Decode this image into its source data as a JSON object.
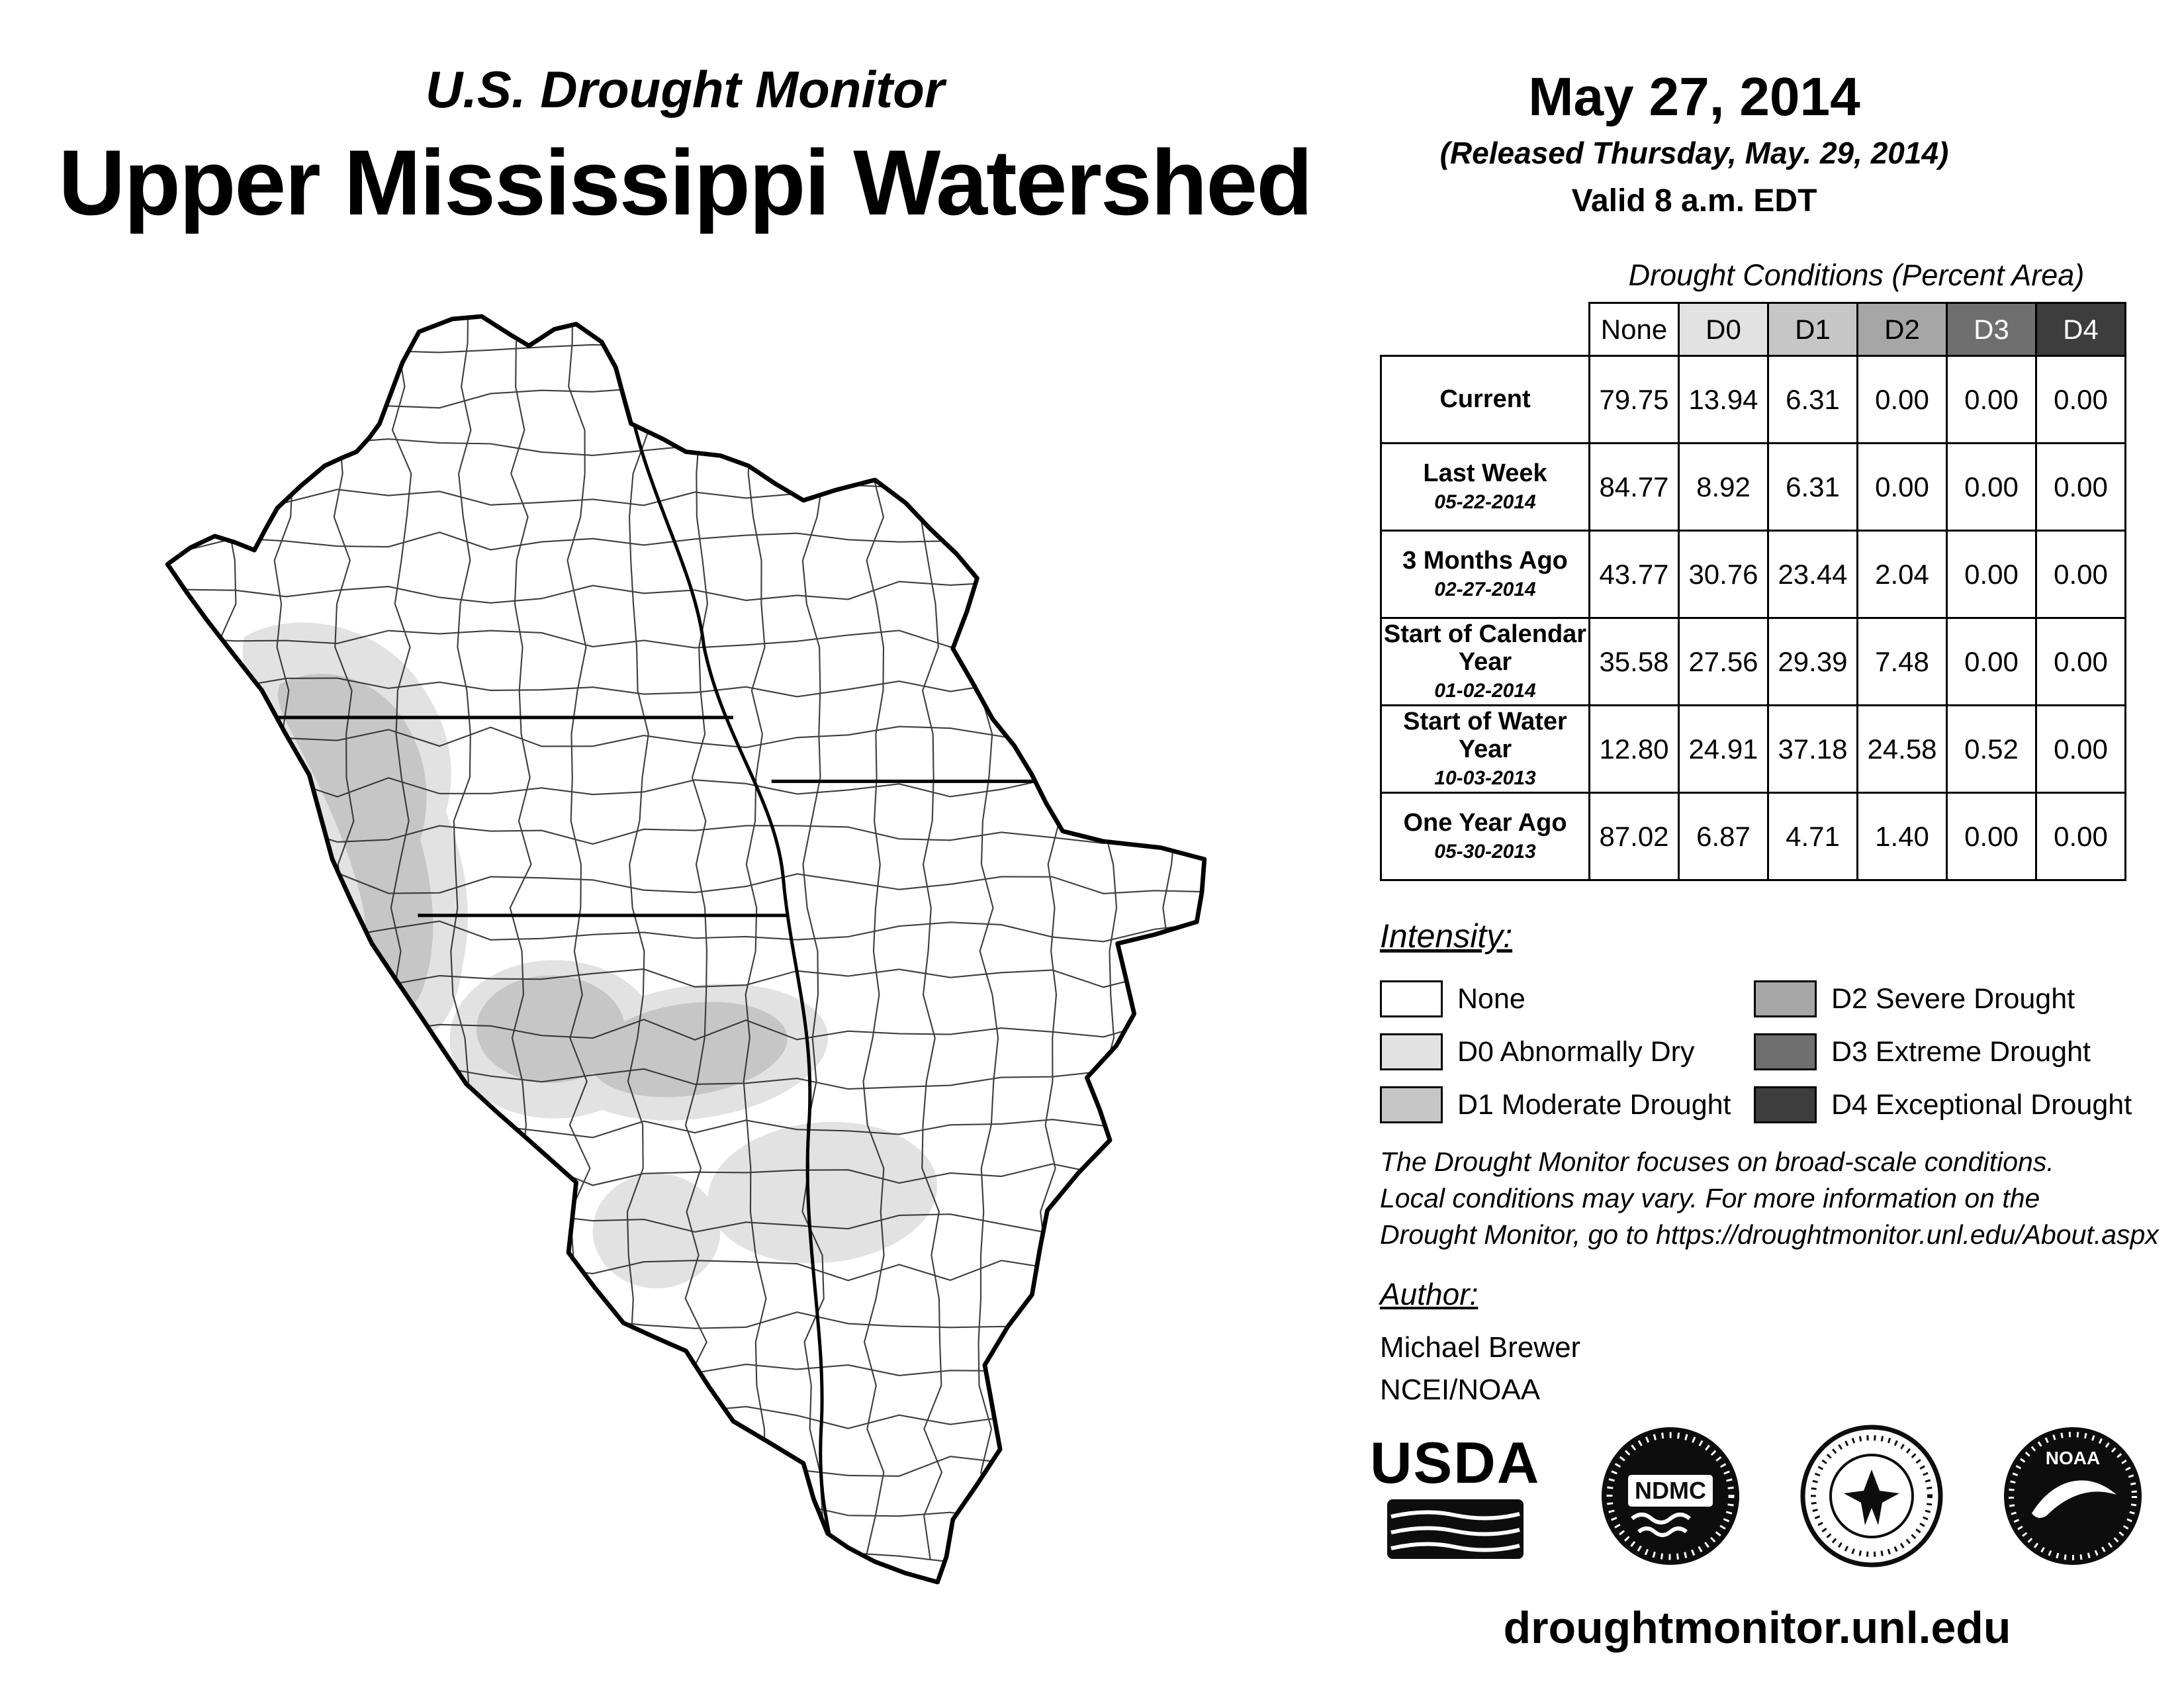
{
  "header": {
    "title_small": "U.S. Drought Monitor",
    "title_large": "Upper Mississippi Watershed",
    "date": "May 27, 2014",
    "released": "(Released Thursday, May. 29, 2014)",
    "valid": "Valid 8 a.m. EDT"
  },
  "table": {
    "title": "Drought Conditions (Percent Area)",
    "columns": [
      "None",
      "D0",
      "D1",
      "D2",
      "D3",
      "D4"
    ],
    "rows": [
      {
        "label": "Current",
        "sub": "",
        "values": [
          "79.75",
          "13.94",
          "6.31",
          "0.00",
          "0.00",
          "0.00"
        ]
      },
      {
        "label": "Last Week",
        "sub": "05-22-2014",
        "values": [
          "84.77",
          "8.92",
          "6.31",
          "0.00",
          "0.00",
          "0.00"
        ]
      },
      {
        "label": "3 Months Ago",
        "sub": "02-27-2014",
        "values": [
          "43.77",
          "30.76",
          "23.44",
          "2.04",
          "0.00",
          "0.00"
        ]
      },
      {
        "label": "Start of Calendar Year",
        "sub": "01-02-2014",
        "values": [
          "35.58",
          "27.56",
          "29.39",
          "7.48",
          "0.00",
          "0.00"
        ]
      },
      {
        "label": "Start of Water Year",
        "sub": "10-03-2013",
        "values": [
          "12.80",
          "24.91",
          "37.18",
          "24.58",
          "0.52",
          "0.00"
        ]
      },
      {
        "label": "One Year Ago",
        "sub": "05-30-2013",
        "values": [
          "87.02",
          "6.87",
          "4.71",
          "1.40",
          "0.00",
          "0.00"
        ]
      }
    ]
  },
  "intensity": {
    "title": "Intensity:",
    "colors": {
      "none": "#ffffff",
      "d0": "#e2e2e2",
      "d1": "#c6c6c6",
      "d2": "#a6a6a6",
      "d3": "#6f6f6f",
      "d4": "#3d3d3d"
    },
    "labels": {
      "none": "None",
      "d0": "D0 Abnormally Dry",
      "d1": "D1 Moderate Drought",
      "d2": "D2 Severe Drought",
      "d3": "D3 Extreme Drought",
      "d4": "D4 Exceptional Drought"
    }
  },
  "disclaimer": "The Drought Monitor focuses on broad-scale conditions.\nLocal conditions may vary. For more information on the\nDrought Monitor, go to https://droughtmonitor.unl.edu/About.aspx",
  "author": {
    "title": "Author:",
    "name": "Michael Brewer",
    "org": "NCEI/NOAA"
  },
  "logos": {
    "usda_label": "USDA",
    "ndmc_label": "NDMC",
    "noaa_label": "NOAA"
  },
  "footer": {
    "url": "droughtmonitor.unl.edu"
  }
}
